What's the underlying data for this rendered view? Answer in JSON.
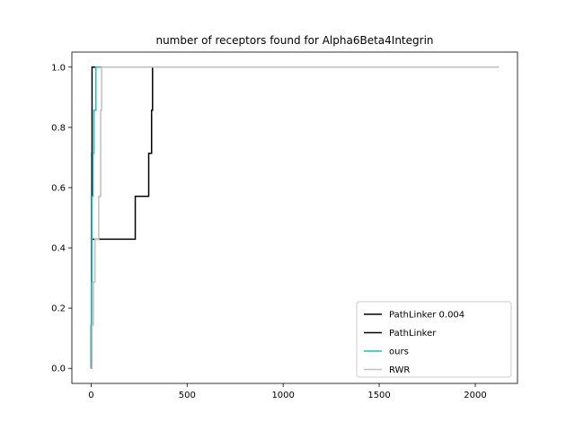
{
  "chart_data": {
    "type": "line",
    "title": "number of receptors found for Alpha6Beta4Integrin",
    "xlabel": "",
    "ylabel": "",
    "xlim": [
      -100,
      2220
    ],
    "ylim": [
      -0.05,
      1.05
    ],
    "xticks": [
      0,
      500,
      1000,
      1500,
      2000
    ],
    "yticks": [
      0.0,
      0.2,
      0.4,
      0.6,
      0.8,
      1.0
    ],
    "xtick_labels": [
      "0",
      "500",
      "1000",
      "1500",
      "2000"
    ],
    "ytick_labels": [
      "0.0",
      "0.2",
      "0.4",
      "0.6",
      "0.8",
      "1.0"
    ],
    "grid": false,
    "legend_position": "bottom-right",
    "series": [
      {
        "name": "PathLinker 0.004",
        "color": "#000000",
        "style": "step",
        "x": [
          0,
          1,
          2,
          3,
          4,
          5,
          2120
        ],
        "y": [
          0.0,
          0.143,
          0.286,
          0.571,
          0.714,
          1.0,
          1.0
        ]
      },
      {
        "name": "PathLinker",
        "color": "#000000",
        "style": "step",
        "x": [
          0,
          1,
          2,
          4,
          20,
          230,
          300,
          315,
          320,
          2120
        ],
        "y": [
          0.0,
          0.143,
          0.286,
          0.429,
          0.429,
          0.571,
          0.714,
          0.857,
          1.0,
          1.0
        ]
      },
      {
        "name": "ours",
        "color": "#17becf",
        "style": "step",
        "x": [
          0,
          2,
          5,
          10,
          15,
          25,
          2120
        ],
        "y": [
          0.0,
          0.286,
          0.571,
          0.714,
          0.857,
          1.0,
          1.0
        ]
      },
      {
        "name": "RWR",
        "color": "#bfbfbf",
        "style": "step",
        "x": [
          0,
          5,
          12,
          20,
          40,
          50,
          55,
          2120
        ],
        "y": [
          0.0,
          0.143,
          0.286,
          0.429,
          0.571,
          0.857,
          1.0,
          1.0
        ]
      }
    ]
  }
}
